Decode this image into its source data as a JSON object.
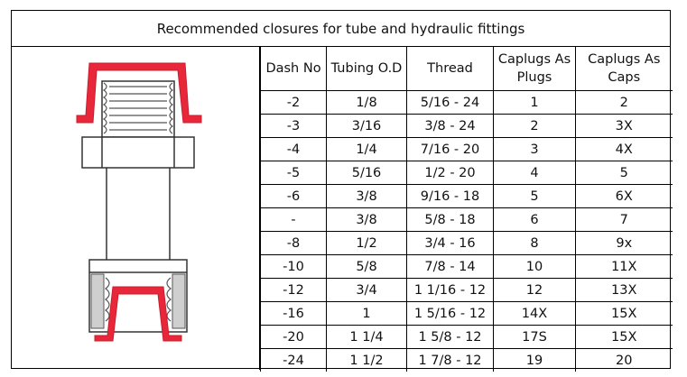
{
  "title": "Recommended closures for tube and hydraulic fittings",
  "drawing": {
    "icon": "hydraulic-fitting-with-caplugs-icon",
    "plug_color": "#e8283a"
  },
  "headers": [
    "Dash No",
    "Tubing O.D",
    "Thread",
    "Caplugs As Plugs",
    "Caplugs As Caps"
  ],
  "rows": [
    [
      "-2",
      "1/8",
      "5/16 - 24",
      "1",
      "2"
    ],
    [
      "-3",
      "3/16",
      "3/8 - 24",
      "2",
      "3X"
    ],
    [
      "-4",
      "1/4",
      "7/16 - 20",
      "3",
      "4X"
    ],
    [
      "-5",
      "5/16",
      "1/2 - 20",
      "4",
      "5"
    ],
    [
      "-6",
      "3/8",
      "9/16 - 18",
      "5",
      "6X"
    ],
    [
      "-",
      "3/8",
      "5/8 - 18",
      "6",
      "7"
    ],
    [
      "-8",
      "1/2",
      "3/4 - 16",
      "8",
      "9x"
    ],
    [
      "-10",
      "5/8",
      "7/8 - 14",
      "10",
      "11X"
    ],
    [
      "-12",
      "3/4",
      "1 1/16 - 12",
      "12",
      "13X"
    ],
    [
      "-16",
      "1",
      "1 5/16 - 12",
      "14X",
      "15X"
    ],
    [
      "-20",
      "1 1/4",
      "1 5/8 - 12",
      "17S",
      "15X"
    ],
    [
      "-24",
      "1 1/2",
      "1 7/8 - 12",
      "19",
      "20"
    ]
  ]
}
